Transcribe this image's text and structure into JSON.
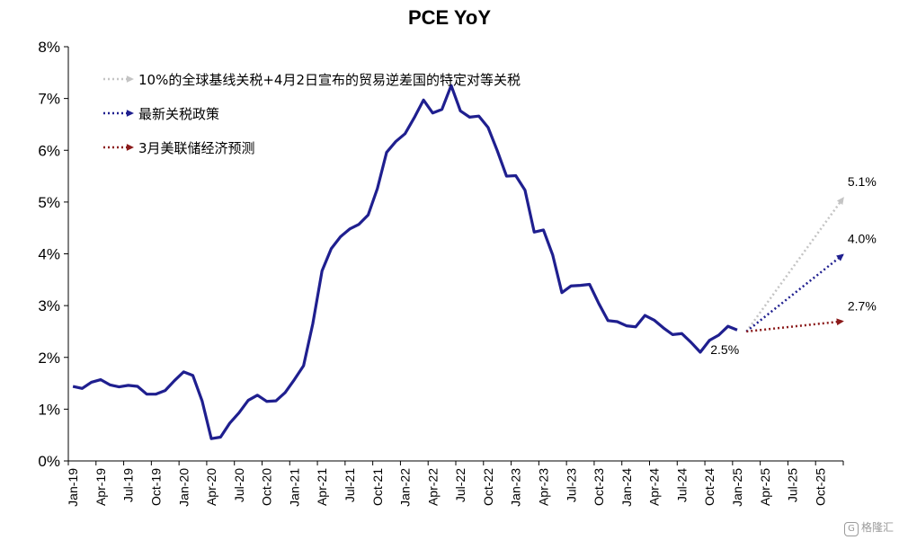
{
  "chart_data": {
    "type": "line",
    "title": "PCE YoY",
    "ylim": [
      0,
      8
    ],
    "y_ticks": [
      "0%",
      "1%",
      "2%",
      "3%",
      "4%",
      "5%",
      "6%",
      "7%",
      "8%"
    ],
    "x_tick_labels": [
      "Jan-19",
      "Apr-19",
      "Jul-19",
      "Oct-19",
      "Jan-20",
      "Apr-20",
      "Jul-20",
      "Oct-20",
      "Jan-21",
      "Apr-21",
      "Jul-21",
      "Oct-21",
      "Jan-22",
      "Apr-22",
      "Jul-22",
      "Oct-22",
      "Jan-23",
      "Apr-23",
      "Jul-23",
      "Oct-23",
      "Jan-24",
      "Apr-24",
      "Jul-24",
      "Oct-24",
      "Jan-25",
      "Apr-25",
      "Jul-25",
      "Oct-25"
    ],
    "grid": false,
    "series": [
      {
        "color": "#1f1f8f",
        "style": "solid",
        "x_start": "Jan-19",
        "values": [
          1.44,
          1.4,
          1.52,
          1.57,
          1.47,
          1.43,
          1.46,
          1.44,
          1.29,
          1.29,
          1.36,
          1.55,
          1.72,
          1.65,
          1.16,
          0.43,
          0.46,
          0.73,
          0.93,
          1.17,
          1.27,
          1.15,
          1.16,
          1.32,
          1.57,
          1.84,
          2.65,
          3.67,
          4.1,
          4.33,
          4.48,
          4.57,
          4.75,
          5.26,
          5.96,
          6.17,
          6.32,
          6.63,
          6.97,
          6.72,
          6.79,
          7.25,
          6.76,
          6.64,
          6.66,
          6.44,
          5.99,
          5.5,
          5.51,
          5.23,
          4.42,
          4.46,
          3.98,
          3.25,
          3.38,
          3.39,
          3.41,
          3.04,
          2.71,
          2.69,
          2.61,
          2.59,
          2.81,
          2.72,
          2.57,
          2.44,
          2.46,
          2.29,
          2.1,
          2.33,
          2.43,
          2.6,
          2.53
        ]
      },
      {
        "name": "10%的全球基线关税+4月2日宣布的贸易逆差国的特定对等关税",
        "color": "#c4c4c4",
        "style": "dotted",
        "from": [
          "Feb-25",
          2.5
        ],
        "to": [
          "Dec-25",
          5.1
        ],
        "end_label": "5.1%"
      },
      {
        "name": "最新关税政策",
        "color": "#1f1f8f",
        "style": "dotted",
        "from": [
          "Feb-25",
          2.5
        ],
        "to": [
          "Dec-25",
          4.0
        ],
        "end_label": "4.0%"
      },
      {
        "name": "3月美联储经济预测",
        "color": "#8b1a1a",
        "style": "dotted",
        "from": [
          "Feb-25",
          2.5
        ],
        "to": [
          "Dec-25",
          2.7
        ],
        "end_label": "2.7%"
      }
    ],
    "annotations": [
      {
        "text": "2.5%",
        "x": "Feb-25",
        "y": 2.5
      }
    ],
    "legend_position": "top-left"
  },
  "watermark": {
    "logo": "G",
    "text": "格隆汇"
  }
}
